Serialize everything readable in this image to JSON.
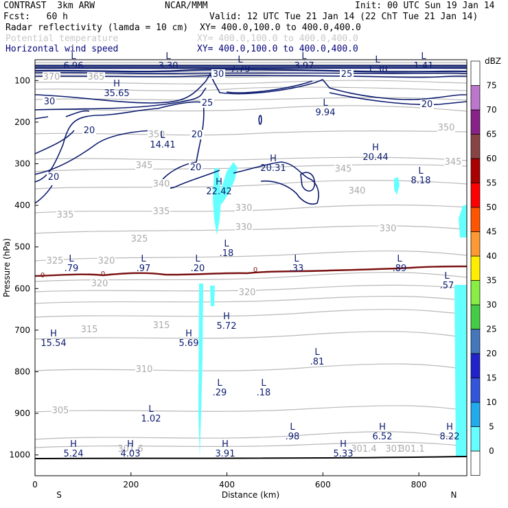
{
  "header": {
    "model": "CONTRAST  3km ARW",
    "center": "NCAR/MMM",
    "init": "Init: 00 UTC Sun 19 Jan 14",
    "fcst": "Fcst:   60 h",
    "valid": "Valid: 12 UTC Tue 21 Jan 14 (22 ChT Tue 21 Jan 14)",
    "field1": "Radar reflectivity (lamda = 10 cm)",
    "field1_xy": "XY= 400.0,100.0 to 400.0,400.0",
    "field2": "Potential temperature",
    "field2_xy": "XY= 400.0,100.0 to 400.0,400.0",
    "field3": "Horizontal wind speed",
    "field3_xy": "XY= 400.0,100.0 to 400.0,400.0"
  },
  "chart_data": {
    "type": "contour",
    "xlabel": "Distance (km)",
    "ylabel": "Pressure (hPa)",
    "xlim": [
      0,
      900
    ],
    "ylim": [
      1050,
      50
    ],
    "xticks": [
      "0",
      "200",
      "400",
      "600",
      "800"
    ],
    "yticks": [
      "100",
      "200",
      "300",
      "400",
      "500",
      "600",
      "700",
      "800",
      "900",
      "1000"
    ],
    "x_end_labels": {
      "left": "S",
      "right": "N"
    },
    "colorbar": {
      "unit": "dBZ",
      "levels": [
        "0",
        "5",
        "10",
        "15",
        "20",
        "25",
        "30",
        "35",
        "40",
        "45",
        "50",
        "55",
        "60",
        "65",
        "70",
        "75"
      ],
      "colors": [
        "#ffffff",
        "#66ffff",
        "#22aaee",
        "#3355dd",
        "#2222cc",
        "#4477bb",
        "#44cc44",
        "#88ee44",
        "#ffee00",
        "#ff9933",
        "#ff5500",
        "#ff0000",
        "#aa0000",
        "#884444",
        "#882288",
        "#bb77cc",
        "#ffffff"
      ]
    },
    "theta_labels": [
      "370",
      "365",
      "350",
      "345",
      "345",
      "350",
      "345",
      "340",
      "340",
      "335",
      "335",
      "330",
      "330",
      "330",
      "325",
      "325",
      "320",
      "320",
      "320",
      "315",
      "315",
      "310",
      "305",
      "301.6",
      "301.4",
      "301.4",
      "301.1"
    ],
    "wind_labels": [
      "30",
      "30",
      "25",
      "25",
      "20",
      "20",
      "20",
      "20",
      "20"
    ],
    "zero_label": "0",
    "extrema": [
      {
        "type": "L",
        "value": "6.96"
      },
      {
        "type": "L",
        "value": "3.30"
      },
      {
        "type": "L",
        "value": "7.79"
      },
      {
        "type": "L",
        "value": "3.97"
      },
      {
        "type": "L",
        "value": "1.38"
      },
      {
        "type": "L",
        "value": "1.41"
      },
      {
        "type": "H",
        "value": "35.65"
      },
      {
        "type": "L",
        "value": "9.94"
      },
      {
        "type": "L",
        "value": "14.41"
      },
      {
        "type": "H",
        "value": "20.31"
      },
      {
        "type": "H",
        "value": "20.44"
      },
      {
        "type": "L",
        "value": "8.18"
      },
      {
        "type": "H",
        "value": "22.42"
      },
      {
        "type": "L",
        "value": ".18"
      },
      {
        "type": "L",
        "value": ".79"
      },
      {
        "type": "L",
        "value": ".97"
      },
      {
        "type": "L",
        "value": ".20"
      },
      {
        "type": "L",
        "value": ".33"
      },
      {
        "type": "L",
        "value": ".89"
      },
      {
        "type": "L",
        "value": ".57"
      },
      {
        "type": "H",
        "value": "15.54"
      },
      {
        "type": "H",
        "value": "5.69"
      },
      {
        "type": "H",
        "value": "5.72"
      },
      {
        "type": "L",
        "value": ".81"
      },
      {
        "type": "L",
        "value": ".29"
      },
      {
        "type": "L",
        "value": ".18"
      },
      {
        "type": "L",
        "value": "1.02"
      },
      {
        "type": "L",
        "value": ".98"
      },
      {
        "type": "H",
        "value": "6.52"
      },
      {
        "type": "H",
        "value": "8.22"
      },
      {
        "type": "H",
        "value": "5.24"
      },
      {
        "type": "H",
        "value": "4.03"
      },
      {
        "type": "H",
        "value": "3.91"
      },
      {
        "type": "H",
        "value": "5.33"
      }
    ]
  }
}
